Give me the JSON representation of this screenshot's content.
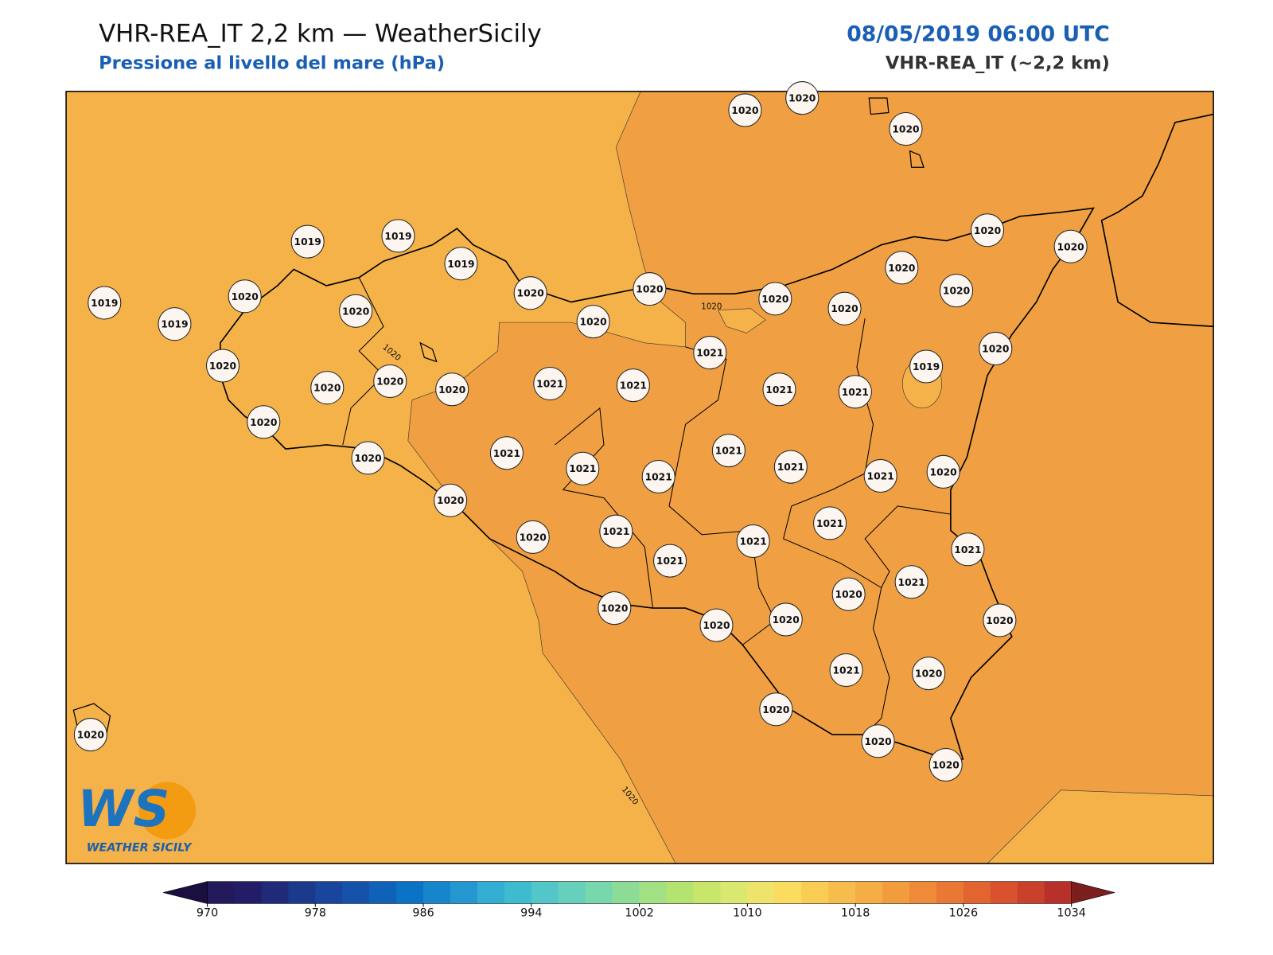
{
  "header": {
    "title": "VHR-REA_IT 2,2 km — WeatherSicily",
    "subtitle": "Pressione al livello del mare (hPa)",
    "datetime": "08/05/2019 06:00 UTC",
    "model": "VHR-REA_IT (~2,2 km)"
  },
  "stations": [
    1020,
    1020,
    1020,
    1020,
    1020,
    1020,
    1020,
    1020,
    1020,
    1020,
    1020,
    1019,
    1021,
    1021,
    1021,
    1019,
    1019,
    1019,
    1020,
    1020,
    1019,
    1019,
    1020,
    1020,
    1020,
    1020,
    1020,
    1020,
    1021,
    1021,
    1020,
    1020,
    1021,
    1021,
    1021,
    1021,
    1021,
    1021,
    1020,
    1020,
    1020,
    1021,
    1021,
    1021,
    1021,
    1021,
    1021,
    1020,
    1020,
    1020,
    1020,
    1020,
    1021,
    1020,
    1020,
    1020,
    1020,
    1020
  ],
  "contour_labels": [
    1020,
    1020,
    1020
  ],
  "logo": {
    "mark": "WS",
    "text": "WEATHER SICILY"
  },
  "colorbar": {
    "range": [
      970,
      1034
    ],
    "ticks": [
      970,
      978,
      986,
      994,
      1002,
      1010,
      1018,
      1026,
      1034
    ],
    "colors": [
      "#221a5a",
      "#231c66",
      "#1f2a78",
      "#1c3a8c",
      "#1a459c",
      "#1552aa",
      "#0f62b8",
      "#0b73c6",
      "#1785cc",
      "#2496d0",
      "#31aed2",
      "#3ebccf",
      "#52c6c8",
      "#66d0bd",
      "#78d8ad",
      "#8cdc98",
      "#a2e084",
      "#b5e370",
      "#c8e66a",
      "#dbe86f",
      "#eee46c",
      "#fbdc5e",
      "#fbcc53",
      "#f7bd4c",
      "#f4ae44",
      "#f19d3e",
      "#ee8a38",
      "#e87833",
      "#e2652f",
      "#d9522d",
      "#c9402b",
      "#b8302a"
    ],
    "under_color": "#1a0f40",
    "over_color": "#7a1e1e"
  }
}
